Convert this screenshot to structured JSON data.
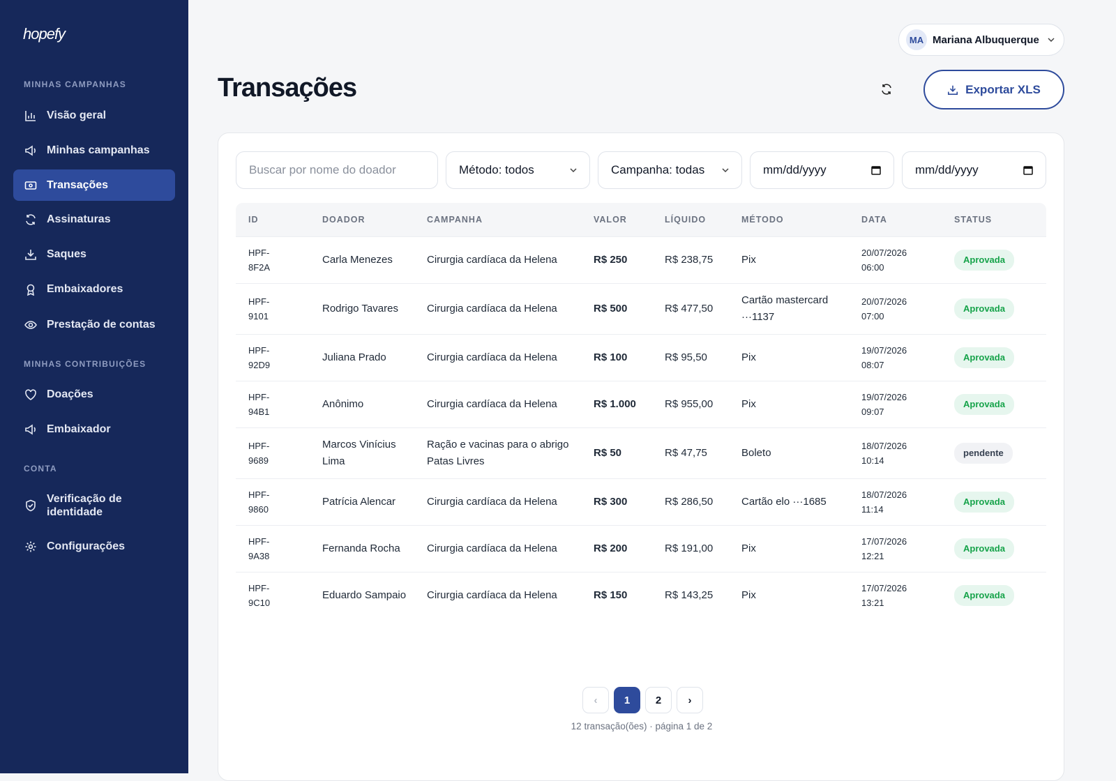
{
  "sidebar": {
    "logo": "hopefy",
    "sections": [
      {
        "title": "MINHAS CAMPANHAS",
        "items": [
          "Visão geral",
          "Minhas campanhas",
          "Transações",
          "Assinaturas",
          "Saques",
          "Embaixadores",
          "Prestação de contas"
        ]
      },
      {
        "title": "MINHAS CONTRIBUIÇÕES",
        "items": [
          "Doações",
          "Embaixador"
        ]
      },
      {
        "title": "CONTA",
        "items": [
          "Verificação de identidade",
          "Configurações"
        ]
      }
    ]
  },
  "header": {
    "user_initials": "MA",
    "user_name": "Mariana Albuquerque",
    "title": "Transações",
    "export_button": "Exportar XLS"
  },
  "filters": {
    "search_placeholder": "Buscar por nome do doador",
    "method": "Método: todos",
    "campaign": "Campanha: todas",
    "date_from": "mm/dd/yyyy",
    "date_to": "mm/dd/yyyy"
  },
  "table": {
    "columns": [
      "ID",
      "DOADOR",
      "CAMPANHA",
      "VALOR",
      "LÍQUIDO",
      "MÉTODO",
      "DATA",
      "STATUS"
    ],
    "rows": [
      [
        "HPF-8F2A",
        "Carla Menezes",
        "Cirurgia cardíaca da Helena",
        "R$ 250",
        "R$ 238,75",
        "Pix",
        "20/07/2026 06:00",
        "Aprovada"
      ],
      [
        "HPF-9101",
        "Rodrigo Tavares",
        "Cirurgia cardíaca da Helena",
        "R$ 500",
        "R$ 477,50",
        "Cartão mastercard ···1137",
        "20/07/2026 07:00",
        "Aprovada"
      ],
      [
        "HPF-92D9",
        "Juliana Prado",
        "Cirurgia cardíaca da Helena",
        "R$ 100",
        "R$ 95,50",
        "Pix",
        "19/07/2026 08:07",
        "Aprovada"
      ],
      [
        "HPF-94B1",
        "Anônimo",
        "Cirurgia cardíaca da Helena",
        "R$ 1.000",
        "R$ 955,00",
        "Pix",
        "19/07/2026 09:07",
        "Aprovada"
      ],
      [
        "HPF-9689",
        "Marcos Vinícius Lima",
        "Ração e vacinas para o abrigo Patas Livres",
        "R$ 50",
        "R$ 47,75",
        "Boleto",
        "18/07/2026 10:14",
        "pendente"
      ],
      [
        "HPF-9860",
        "Patrícia Alencar",
        "Cirurgia cardíaca da Helena",
        "R$ 300",
        "R$ 286,50",
        "Cartão elo ···1685",
        "18/07/2026 11:14",
        "Aprovada"
      ],
      [
        "HPF-9A38",
        "Fernanda Rocha",
        "Cirurgia cardíaca da Helena",
        "R$ 200",
        "R$ 191,00",
        "Pix",
        "17/07/2026 12:21",
        "Aprovada"
      ],
      [
        "HPF-9C10",
        "Eduardo Sampaio",
        "Cirurgia cardíaca da Helena",
        "R$ 150",
        "R$ 143,25",
        "Pix",
        "17/07/2026 13:21",
        "Aprovada"
      ]
    ]
  },
  "pagination": {
    "prev": "‹",
    "pages": [
      "1",
      "2"
    ],
    "next": "›",
    "summary": "12 transação(ões) · página 1 de 2"
  }
}
